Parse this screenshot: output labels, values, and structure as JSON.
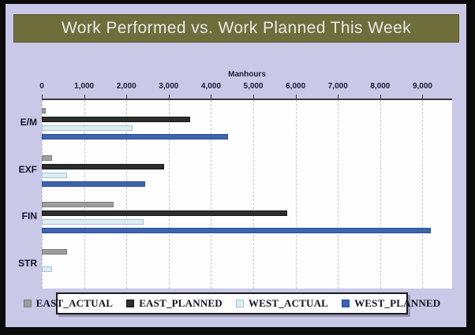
{
  "window": {
    "title": "Work Performed vs. Work Planned This Week"
  },
  "colors": {
    "frame_border": "#0B0B0B",
    "background": "#C9C8E6",
    "title_bar_bg": "#6E6E3C",
    "title_text": "#E9E9E9",
    "plot_bg": "#FEFEFE",
    "axis_line": "#3A3A3A",
    "gridline": "#C3C3C8",
    "tick_text": "#1C1C30",
    "legend_bg": "#FDFDFD"
  },
  "chart_data": {
    "type": "bar",
    "orientation": "horizontal",
    "title": "Work Performed vs. Work Planned This Week",
    "x_axis_title": "Manhours",
    "categories": [
      "E/M",
      "EXF",
      "FIN",
      "STR"
    ],
    "series": [
      {
        "name": "EAST_ACTUAL",
        "color": "#9C9C9C",
        "border_color": "#7E7E7E",
        "values": [
          100,
          250,
          1700,
          600
        ]
      },
      {
        "name": "EAST_PLANNED",
        "color": "#2E2E2E",
        "border_color": "#171717",
        "values": [
          3500,
          2900,
          5800,
          0
        ]
      },
      {
        "name": "WEST_ACTUAL",
        "color": "#DAEDF5",
        "border_color": "#A9C2CE",
        "values": [
          2150,
          600,
          2400,
          240
        ]
      },
      {
        "name": "WEST_PLANNED",
        "color": "#3E64AE",
        "border_color": "#2C4E96",
        "values": [
          4400,
          2450,
          9200,
          0
        ]
      }
    ],
    "x_ticks": [
      {
        "value": 0,
        "label": "0"
      },
      {
        "value": 1000,
        "label": "1,000"
      },
      {
        "value": 2000,
        "label": "2,000"
      },
      {
        "value": 3000,
        "label": "3,000"
      },
      {
        "value": 4000,
        "label": "4,000"
      },
      {
        "value": 5000,
        "label": "5,000"
      },
      {
        "value": 6000,
        "label": "6,000"
      },
      {
        "value": 7000,
        "label": "7,000"
      },
      {
        "value": 8000,
        "label": "8,000"
      },
      {
        "value": 9000,
        "label": "9,000"
      }
    ],
    "xlim": [
      0,
      9700
    ],
    "grid": "vertical-dashed",
    "legend_position": "bottom"
  }
}
